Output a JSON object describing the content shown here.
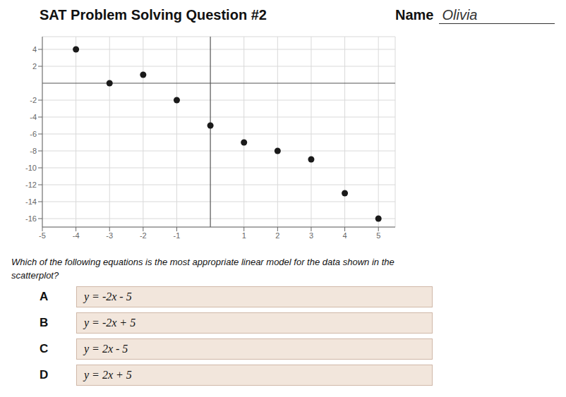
{
  "chart_data": {
    "type": "scatter",
    "title": "SAT Problem Solving Question #2",
    "name": {
      "label": "Name",
      "value": "Olivia"
    },
    "question": [
      "Which of the following equations is the most appropriate linear model for the data shown in the",
      "scatterplot?"
    ],
    "options": [
      {
        "label": "A",
        "text": "y = -2x - 5"
      },
      {
        "label": "B",
        "text": "y = -2x + 5"
      },
      {
        "label": "C",
        "text": "y = 2x - 5"
      },
      {
        "label": "D",
        "text": "y = 2x + 5"
      }
    ],
    "x": [
      -4,
      -3,
      -2,
      -1,
      0,
      1,
      2,
      3,
      4,
      5
    ],
    "values": [
      4,
      0,
      1,
      -2,
      -5,
      -7,
      -8,
      -9,
      -13,
      -16
    ],
    "color": "#1a1a1a",
    "xlim": [
      -5,
      5.5
    ],
    "ylim": [
      -17,
      5.5
    ],
    "xticks": [
      -5,
      -4,
      -3,
      -2,
      -1,
      1,
      2,
      3,
      4,
      5
    ],
    "yticks": [
      -16,
      -14,
      -12,
      -10,
      -8,
      -6,
      -4,
      -2,
      2,
      4
    ],
    "grid": true
  }
}
